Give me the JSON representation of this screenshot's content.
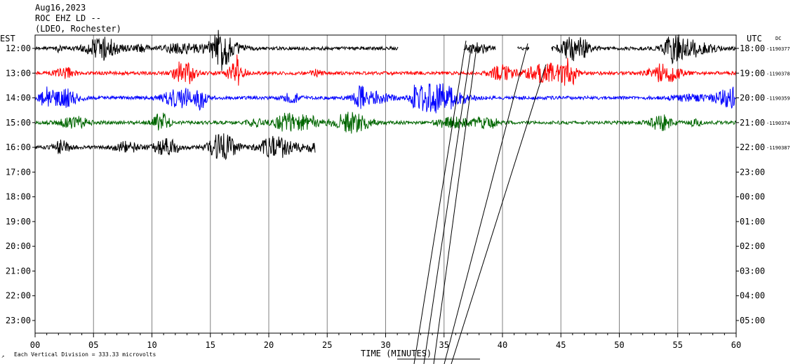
{
  "header": {
    "date": "Aug16,2023",
    "station": "ROC EHZ LD --",
    "network": "(LDEO, Rochester)"
  },
  "footer": {
    "note": "Each Vertical Division =  333.33 microvolts",
    "axis_title": "TIME (MINUTES)"
  },
  "chart_data": {
    "type": "line",
    "title": "",
    "xlabel": "TIME (MINUTES)",
    "ylabel_left": "EST",
    "ylabel_right": "UTC",
    "dc_label": "DC",
    "xlim": [
      0,
      60
    ],
    "x_ticks": [
      "00",
      "05",
      "10",
      "15",
      "20",
      "25",
      "30",
      "35",
      "40",
      "45",
      "50",
      "55",
      "60"
    ],
    "est_labels": [
      "12:00",
      "13:00",
      "14:00",
      "15:00",
      "16:00",
      "17:00",
      "18:00",
      "19:00",
      "20:00",
      "21:00",
      "22:00",
      "23:00"
    ],
    "utc_labels": [
      "18:00",
      "19:00",
      "20:00",
      "21:00",
      "22:00",
      "23:00",
      "00:00",
      "01:00",
      "02:00",
      "03:00",
      "04:00",
      "05:00"
    ],
    "grid": true,
    "series": [
      {
        "utc": "18:00",
        "est": "12:00",
        "color": "#000000",
        "dc": "-1190377",
        "segments": [
          [
            0,
            31.1
          ],
          [
            36.7,
            39.4
          ],
          [
            41.3,
            42.3
          ],
          [
            44.2,
            60
          ]
        ]
      },
      {
        "utc": "19:00",
        "est": "13:00",
        "color": "#ff0000",
        "dc": "-1190378",
        "segments": [
          [
            0,
            60
          ]
        ]
      },
      {
        "utc": "20:00",
        "est": "14:00",
        "color": "#0000ff",
        "dc": "-1190359",
        "segments": [
          [
            0,
            60
          ]
        ]
      },
      {
        "utc": "21:00",
        "est": "15:00",
        "color": "#006600",
        "dc": "-1190374",
        "segments": [
          [
            0,
            60
          ]
        ]
      },
      {
        "utc": "22:00",
        "est": "16:00",
        "color": "#000000",
        "dc": "-1190387",
        "segments": [
          [
            0,
            24
          ]
        ]
      }
    ]
  }
}
